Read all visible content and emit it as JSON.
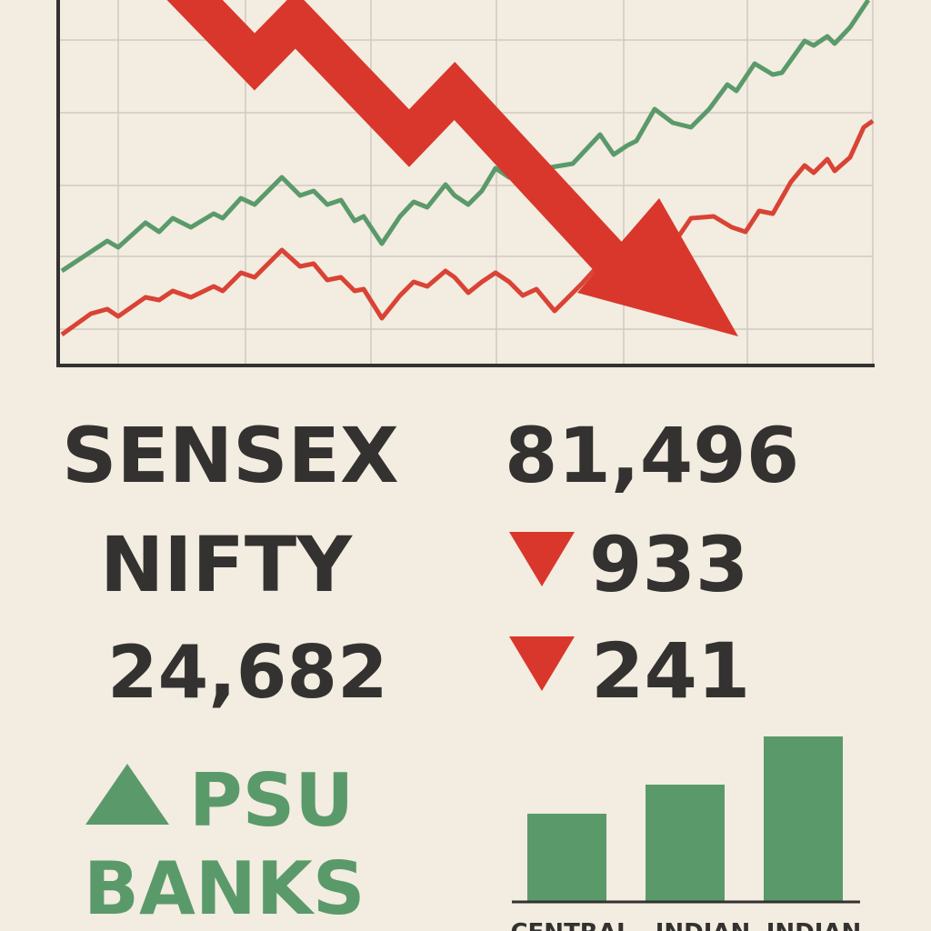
{
  "headline": {
    "index_1_name": "SENSEX",
    "index_1_value": "81,496",
    "index_2_name": "NIFTY",
    "index_2_value": "24,682",
    "index_1_change": "933",
    "index_2_change": "241"
  },
  "sector": {
    "line_1": "PSU",
    "line_2": "BANKS"
  },
  "bars": {
    "labels": [
      "CENTRAL",
      "INDIAN",
      "INDIAN"
    ]
  }
}
